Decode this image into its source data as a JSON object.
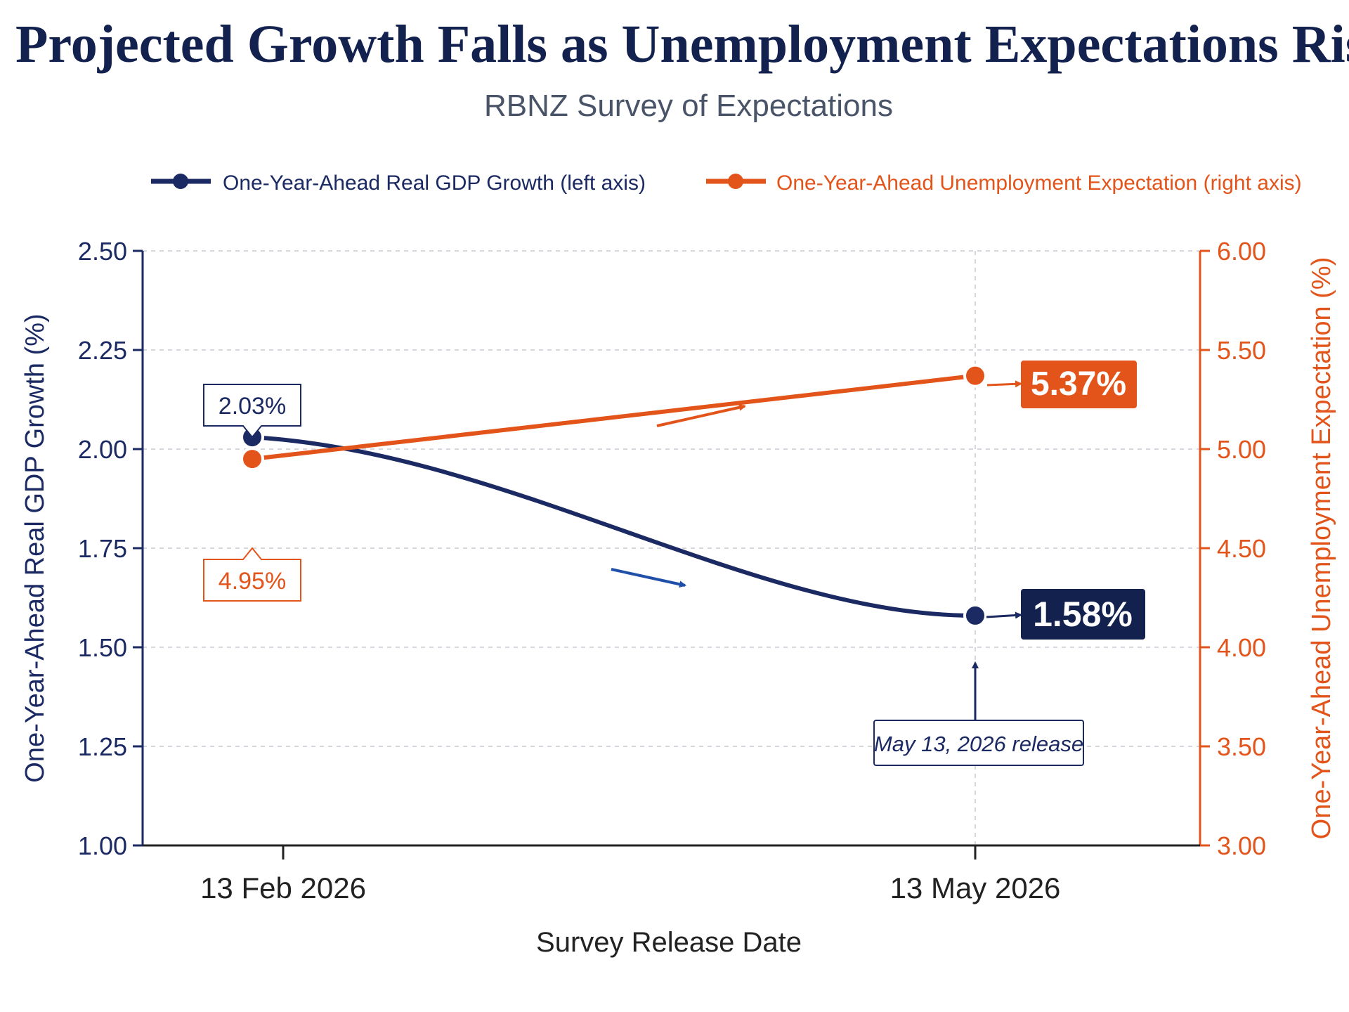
{
  "chart_data": {
    "type": "line",
    "title": "Projected Growth Falls as Unemployment Expectations Rise",
    "subtitle": "RBNZ Survey of Expectations",
    "xlabel": "Survey Release Date",
    "categories": [
      "13 Feb 2026",
      "13 May 2026"
    ],
    "y_left": {
      "label": "One-Year-Ahead Real GDP Growth (%)",
      "ylim": [
        1.0,
        2.5
      ],
      "ticks": [
        "1.00",
        "1.25",
        "1.50",
        "1.75",
        "2.00",
        "2.25",
        "2.50"
      ]
    },
    "y_right": {
      "label": "One-Year-Ahead Unemployment Expectation (%)",
      "ylim": [
        3.0,
        6.0
      ],
      "ticks": [
        "3.00",
        "3.50",
        "4.00",
        "4.50",
        "5.00",
        "5.50",
        "6.00"
      ]
    },
    "series": [
      {
        "name": "One-Year-Ahead Real GDP Growth (left axis)",
        "axis": "left",
        "color": "#1b2a63",
        "values": [
          2.03,
          1.58
        ],
        "labels": [
          "2.03%",
          "1.58%"
        ]
      },
      {
        "name": "One-Year-Ahead Unemployment Expectation (right axis)",
        "axis": "right",
        "color": "#e3541b",
        "values": [
          4.95,
          5.37
        ],
        "labels": [
          "4.95%",
          "5.37%"
        ]
      }
    ],
    "annotations": [
      {
        "text": "May 13, 2026 release",
        "category": "13 May 2026"
      }
    ],
    "grid": true,
    "legend": "top"
  }
}
